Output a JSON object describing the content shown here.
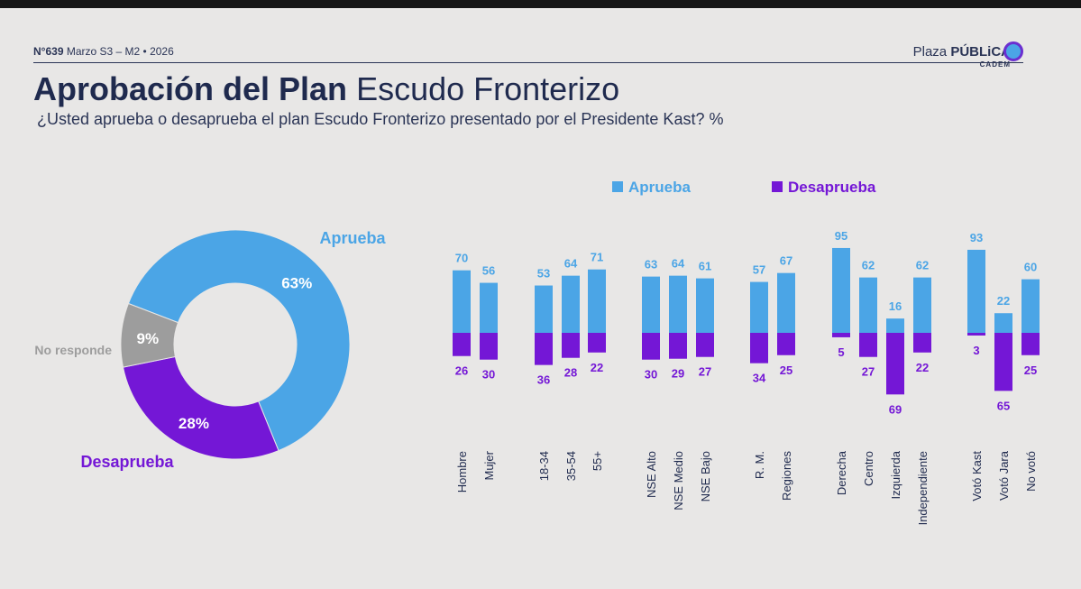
{
  "header": {
    "number": "N°639",
    "period": "Marzo S3 – M2 • 2026",
    "brand_light": "Plaza",
    "brand_bold": "PÚBLiCA",
    "brand_sub": "CADEM"
  },
  "title_bold": "Aprobación del Plan",
  "title_light": "Escudo Fronterizo",
  "subtitle": "¿Usted aprueba o desaprueba el plan Escudo Fronterizo presentado por el Presidente Kast? %",
  "colors": {
    "aprueba": "#4ba5e6",
    "desaprueba": "#7417d6",
    "no_responde": "#9d9d9d",
    "text_dark": "#1f2a4e"
  },
  "chart_data": [
    {
      "type": "pie",
      "subtype": "donut",
      "slices": [
        {
          "label": "Aprueba",
          "value": 63,
          "value_label": "63%"
        },
        {
          "label": "Desaprueba",
          "value": 28,
          "value_label": "28%"
        },
        {
          "label": "No responde",
          "value": 9,
          "value_label": "9%"
        }
      ]
    },
    {
      "type": "bar",
      "subtype": "diverging",
      "legend": [
        "Aprueba",
        "Desaprueba"
      ],
      "groups": [
        {
          "categories": [
            "Hombre",
            "Mujer"
          ]
        },
        {
          "categories": [
            "18-34",
            "35-54",
            "55+"
          ]
        },
        {
          "categories": [
            "NSE Alto",
            "NSE Medio",
            "NSE Bajo"
          ]
        },
        {
          "categories": [
            "R. M.",
            "Regiones"
          ]
        },
        {
          "categories": [
            "Derecha",
            "Centro",
            "Izquierda",
            "Independiente"
          ]
        },
        {
          "categories": [
            "Votó Kast",
            "Votó Jara",
            "No votó"
          ]
        }
      ],
      "series": [
        {
          "name": "Aprueba",
          "values": [
            70,
            56,
            53,
            64,
            71,
            63,
            64,
            61,
            57,
            67,
            95,
            62,
            16,
            62,
            93,
            22,
            60
          ]
        },
        {
          "name": "Desaprueba",
          "values": [
            26,
            30,
            36,
            28,
            22,
            30,
            29,
            27,
            34,
            25,
            5,
            27,
            69,
            22,
            3,
            65,
            25
          ]
        }
      ]
    }
  ]
}
